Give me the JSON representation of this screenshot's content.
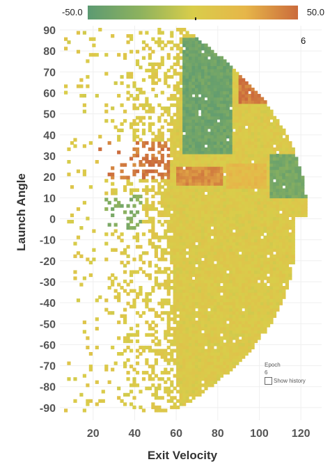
{
  "colors": {
    "scale": [
      "#5c9a72",
      "#8db25e",
      "#d9cd4a",
      "#e6b649",
      "#cb6b3c"
    ],
    "grid": "#efefef"
  },
  "colorbar": {
    "min_label": "-50.0",
    "max_label": "50.0"
  },
  "frame_label": "6",
  "epoch_panel": {
    "title": "Epoch",
    "value": "6",
    "show_history_label": "Show history"
  },
  "chart_data": {
    "type": "heatmap",
    "xlabel": "Exit Velocity",
    "ylabel": "Launch Angle",
    "xlim": [
      4,
      130
    ],
    "ylim": [
      -96,
      92
    ],
    "x_ticks": [
      20,
      40,
      60,
      80,
      100,
      120
    ],
    "y_ticks": [
      90,
      80,
      70,
      60,
      50,
      40,
      30,
      20,
      10,
      0,
      -10,
      -20,
      -30,
      -40,
      -50,
      -60,
      -70,
      -80,
      -90
    ],
    "color_range": [
      -50,
      50
    ],
    "grid": true,
    "regions": [
      {
        "x": [
          62,
          86
        ],
        "y": [
          30,
          85
        ],
        "value": -40
      },
      {
        "x": [
          104,
          122
        ],
        "y": [
          10,
          30
        ],
        "value": -35
      },
      {
        "x": [
          20,
          42
        ],
        "y": [
          -5,
          10
        ],
        "value": -30
      },
      {
        "x": [
          90,
          108
        ],
        "y": [
          55,
          85
        ],
        "value": 45
      },
      {
        "x": [
          22,
          56
        ],
        "y": [
          18,
          36
        ],
        "value": 45
      },
      {
        "x": [
          60,
          82
        ],
        "y": [
          16,
          24
        ],
        "value": 38
      },
      {
        "x": [
          84,
          102
        ],
        "y": [
          14,
          26
        ],
        "value": 20
      }
    ]
  }
}
